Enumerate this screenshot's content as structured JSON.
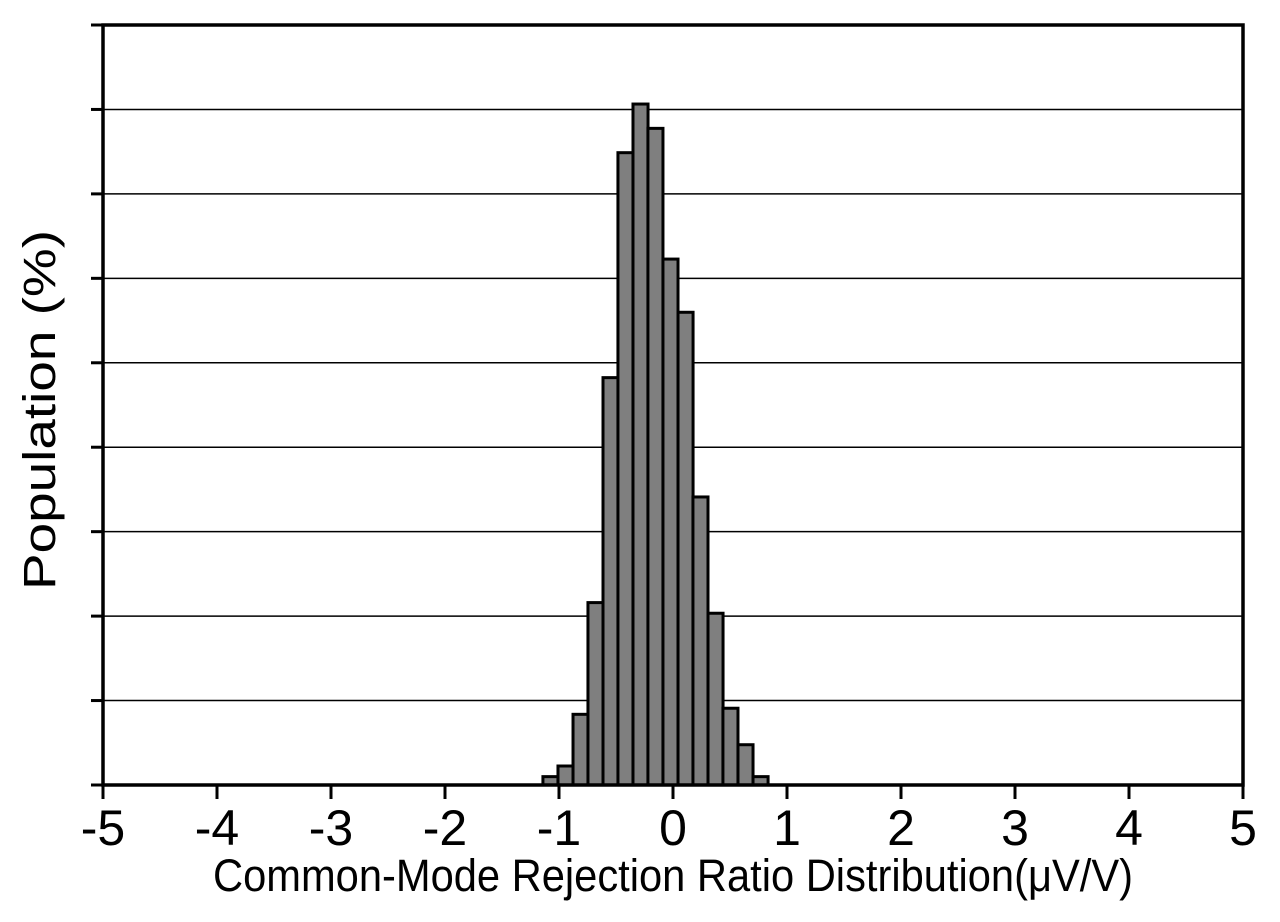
{
  "figure": {
    "background": "#ffffff"
  },
  "chart_data": {
    "type": "histogram",
    "title": "",
    "xlabel": "Common-Mode Rejection Ratio Distribution(μV/V)",
    "ylabel": "Population (%)",
    "xlim": [
      -5,
      5
    ],
    "x_tick_labels": [
      "-5",
      "-4",
      "-3",
      "-2",
      "-1",
      "0",
      "1",
      "2",
      "3",
      "4",
      "5"
    ],
    "x_tick_values": [
      -5,
      -4,
      -3,
      -2,
      -1,
      0,
      1,
      2,
      3,
      4,
      5
    ],
    "y_axis_divisions": 9,
    "y_tick_labels": [],
    "grid": "horizontal",
    "legend": "none",
    "bin_width": 0.132,
    "bin_centers": [
      -1.075,
      -0.943,
      -0.811,
      -0.68,
      -0.548,
      -0.417,
      -0.285,
      -0.154,
      -0.022,
      0.11,
      0.241,
      0.373,
      0.504,
      0.636,
      0.768
    ],
    "values_pct_of_axis_height": [
      1.1,
      2.5,
      9.3,
      24.0,
      53.6,
      83.2,
      89.6,
      86.4,
      69.2,
      62.2,
      37.9,
      22.6,
      10.1,
      5.3,
      1.1
    ],
    "colors": {
      "bar_fill": "#7f7f7f",
      "bar_outline": "#000000",
      "axis": "#000000",
      "gridline": "#000000"
    }
  }
}
